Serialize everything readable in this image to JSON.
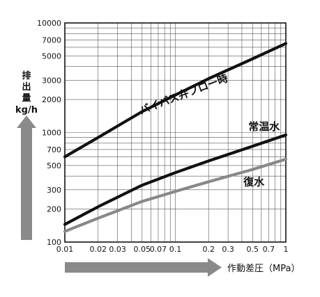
{
  "chart_data": {
    "type": "line",
    "x_scale": "log",
    "y_scale": "log",
    "xlim": [
      0.01,
      1
    ],
    "ylim": [
      100,
      10000
    ],
    "grid": true,
    "x_ticks": [
      "0.01",
      "0.02",
      "0.03",
      "0.05",
      "0.07",
      "0.1",
      "0.2",
      "0.3",
      "0.5",
      "0.7",
      "1"
    ],
    "y_ticks": [
      "100",
      "200",
      "300",
      "500",
      "700",
      "1000",
      "2000",
      "3000",
      "5000",
      "7000",
      "10000"
    ],
    "ylabel": [
      "排",
      "出",
      "量",
      "kg/h"
    ],
    "xlabel": "作動差圧（MPa）",
    "series": [
      {
        "name": "バイパス弁ブロー時",
        "color": "#111111",
        "x": [
          0.01,
          0.02,
          0.05,
          0.1,
          0.2,
          0.5,
          1
        ],
        "y": [
          600,
          900,
          1550,
          2200,
          3100,
          4700,
          6500
        ]
      },
      {
        "name": "常温水",
        "color": "#111111",
        "x": [
          0.01,
          0.02,
          0.05,
          0.1,
          0.2,
          0.5,
          1
        ],
        "y": [
          145,
          210,
          330,
          430,
          550,
          750,
          950
        ]
      },
      {
        "name": "復水",
        "color": "#888888",
        "x": [
          0.01,
          0.02,
          0.05,
          0.1,
          0.2,
          0.5,
          1
        ],
        "y": [
          125,
          165,
          235,
          290,
          355,
          460,
          570
        ]
      }
    ]
  }
}
